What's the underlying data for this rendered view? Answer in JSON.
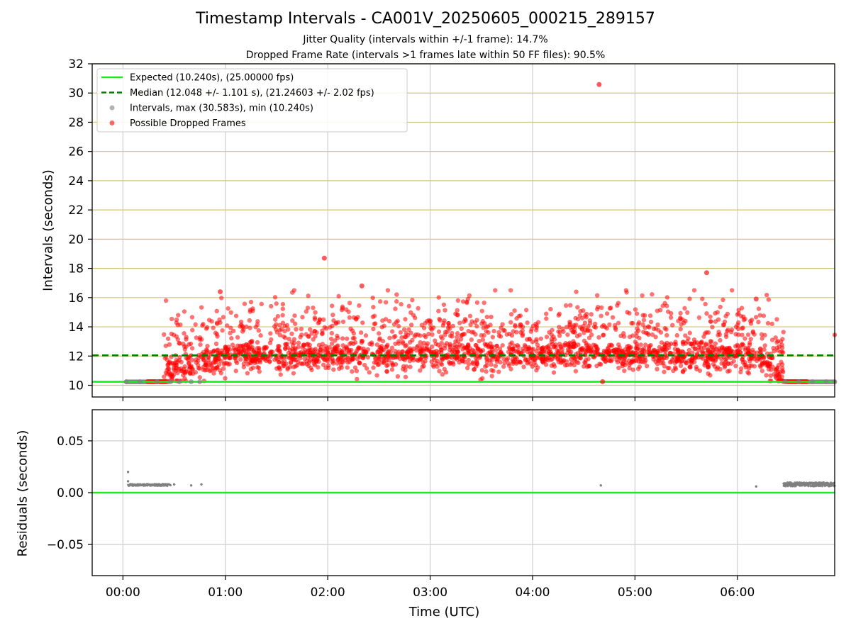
{
  "chart_data": [
    {
      "type": "scatter",
      "title": "Timestamp Intervals - CA001V_20250605_000215_289157",
      "subtitle_1": "Jitter Quality (intervals within +/-1 frame): 14.7%",
      "subtitle_2": "Dropped Frame Rate (intervals >1 frames late within 50 FF files): 90.5%",
      "ylabel": "Intervals (seconds)",
      "xlabel": "Time (UTC)",
      "ylim": [
        9.2,
        32
      ],
      "y_ticks": [
        "10",
        "12",
        "14",
        "16",
        "18",
        "20",
        "22",
        "24",
        "26",
        "28",
        "30",
        "32"
      ],
      "x_tick_labels": [
        "00:00",
        "01:00",
        "02:00",
        "03:00",
        "04:00",
        "05:00",
        "06:00"
      ],
      "x_range_hours": [
        -0.3,
        6.95
      ],
      "grid": true,
      "legend_position": "top-left",
      "legend": [
        "Expected (10.240s), (25.00000 fps)",
        "Median (12.048 +/- 1.101 s), (21.24603 +/- 2.02 fps)",
        "Intervals, max (30.583s), min (10.240s)",
        "Possible Dropped Frames"
      ],
      "series": [
        {
          "name": "Expected (10.240s), (25.00000 fps)",
          "kind": "hline",
          "value": 10.24,
          "color": "#1aee1a"
        },
        {
          "name": "Median (12.048 +/- 1.101 s), (21.24603 +/- 2.02 fps)",
          "kind": "hline",
          "value": 12.048,
          "color": "#008000"
        },
        {
          "name": "Intervals, max (30.583s), min (10.240s)",
          "kind": "scatter",
          "color": "#808080",
          "x": [
            "00:02",
            "00:10",
            "00:20",
            "00:28",
            "00:33",
            "00:40",
            "00:45",
            "06:28",
            "06:36",
            "06:44",
            "06:52",
            "06:57"
          ],
          "y": [
            10.24,
            10.24,
            10.24,
            10.24,
            10.24,
            10.24,
            10.24,
            10.24,
            10.24,
            10.24,
            10.24,
            10.24
          ]
        },
        {
          "name": "Possible Dropped Frames",
          "kind": "scatter",
          "color": "#ff0000",
          "x": [
            "04:39",
            "01:58",
            "06:11",
            "04:41",
            "00:57",
            "02:20",
            "05:42"
          ],
          "y": [
            30.58,
            18.7,
            15.9,
            10.25,
            16.4,
            16.8,
            17.7
          ]
        }
      ],
      "colors": {
        "expected": "#1aee1a",
        "median": "#008000",
        "intervals": "#808080",
        "dropped": "#ff0000",
        "h_grid": "#d4c27a"
      }
    },
    {
      "type": "scatter",
      "ylabel": "Residuals (seconds)",
      "xlabel": "Time (UTC)",
      "ylim": [
        -0.08,
        0.08
      ],
      "y_ticks": [
        "−0.05",
        "0.00",
        "0.05"
      ],
      "x_tick_labels": [
        "00:00",
        "01:00",
        "02:00",
        "03:00",
        "04:00",
        "05:00",
        "06:00"
      ],
      "grid": true,
      "series": [
        {
          "kind": "hline",
          "value": 0.0,
          "color": "#1aee1a"
        },
        {
          "kind": "scatter",
          "color": "#808080",
          "x": [
            "00:03",
            "00:03",
            "00:10",
            "00:20",
            "00:30",
            "00:40",
            "00:46",
            "04:40",
            "06:11",
            "06:28",
            "06:40",
            "06:55"
          ],
          "y": [
            0.02,
            0.011,
            0.008,
            0.008,
            0.008,
            0.007,
            0.008,
            0.007,
            0.006,
            0.009,
            0.008,
            0.008
          ]
        }
      ]
    }
  ]
}
